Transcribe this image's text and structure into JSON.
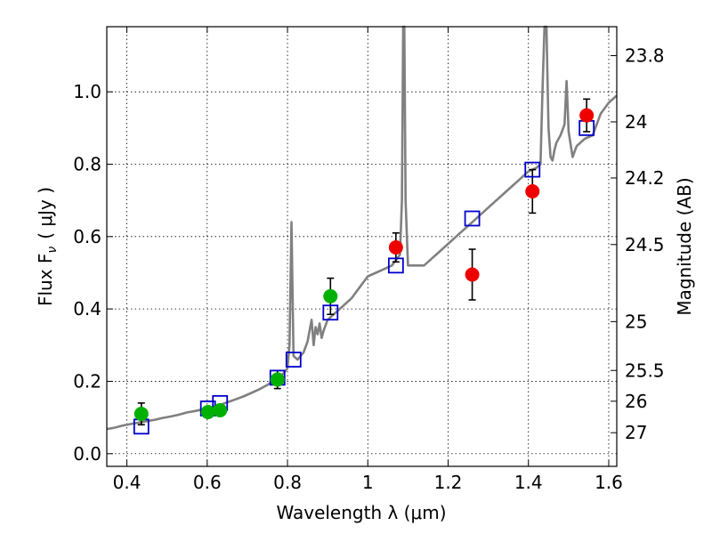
{
  "chart_data": {
    "type": "scatter",
    "xlabel": "Wavelength  λ (μm)",
    "ylabel": "Flux  F",
    "ylabel_sub": "ν",
    "ylabel_unit": "( μJy )",
    "y2label": "Magnitude (AB)",
    "xlim": [
      0.35,
      1.62
    ],
    "ylim": [
      -0.035,
      1.18
    ],
    "x_ticks": [
      0.4,
      0.6,
      0.8,
      1.0,
      1.2,
      1.4,
      1.6
    ],
    "x_tick_labels": [
      "0.4",
      "0.6",
      "0.8",
      "1",
      "1.2",
      "1.4",
      "1.6"
    ],
    "y_ticks": [
      0.0,
      0.2,
      0.4,
      0.6,
      0.8,
      1.0
    ],
    "y_tick_labels": [
      "0.0",
      "0.2",
      "0.4",
      "0.6",
      "0.8",
      "1.0"
    ],
    "y2_ticks": [
      {
        "label": "23.8",
        "flux": 1.1
      },
      {
        "label": "24",
        "flux": 0.917
      },
      {
        "label": "24.2",
        "flux": 0.762
      },
      {
        "label": "24.5",
        "flux": 0.578
      },
      {
        "label": "25",
        "flux": 0.365
      },
      {
        "label": "25.5",
        "flux": 0.23
      },
      {
        "label": "26",
        "flux": 0.145
      },
      {
        "label": "27",
        "flux": 0.058
      }
    ],
    "grid": true,
    "colors": {
      "model": "#808080",
      "model_points": "#0000cc",
      "green_points": "#00b000",
      "red_points": "#ee0000",
      "errorbar": "#000000"
    },
    "series": [
      {
        "kind": "line",
        "points": [
          [
            0.35,
            0.068
          ],
          [
            0.37,
            0.072
          ],
          [
            0.39,
            0.078
          ],
          [
            0.41,
            0.082
          ],
          [
            0.43,
            0.086
          ],
          [
            0.45,
            0.09
          ],
          [
            0.47,
            0.094
          ],
          [
            0.49,
            0.099
          ],
          [
            0.51,
            0.103
          ],
          [
            0.53,
            0.108
          ],
          [
            0.55,
            0.114
          ],
          [
            0.57,
            0.118
          ],
          [
            0.59,
            0.123
          ],
          [
            0.61,
            0.128
          ],
          [
            0.63,
            0.134
          ],
          [
            0.65,
            0.142
          ],
          [
            0.67,
            0.15
          ],
          [
            0.69,
            0.158
          ],
          [
            0.71,
            0.168
          ],
          [
            0.73,
            0.178
          ],
          [
            0.75,
            0.19
          ],
          [
            0.77,
            0.205
          ],
          [
            0.79,
            0.222
          ],
          [
            0.8,
            0.236
          ],
          [
            0.805,
            0.3
          ],
          [
            0.81,
            0.64
          ],
          [
            0.815,
            0.27
          ],
          [
            0.825,
            0.26
          ],
          [
            0.84,
            0.28
          ],
          [
            0.85,
            0.31
          ],
          [
            0.86,
            0.37
          ],
          [
            0.865,
            0.3
          ],
          [
            0.87,
            0.35
          ],
          [
            0.875,
            0.33
          ],
          [
            0.88,
            0.36
          ],
          [
            0.885,
            0.32
          ],
          [
            0.89,
            0.34
          ],
          [
            0.9,
            0.37
          ],
          [
            0.92,
            0.39
          ],
          [
            0.94,
            0.41
          ],
          [
            0.96,
            0.43
          ],
          [
            0.98,
            0.46
          ],
          [
            1.0,
            0.49
          ],
          [
            1.02,
            0.5
          ],
          [
            1.04,
            0.51
          ],
          [
            1.06,
            0.52
          ],
          [
            1.08,
            0.55
          ],
          [
            1.085,
            0.7
          ],
          [
            1.088,
            1.18
          ],
          [
            1.091,
            1.18
          ],
          [
            1.094,
            0.7
          ],
          [
            1.1,
            0.52
          ],
          [
            1.12,
            0.52
          ],
          [
            1.14,
            0.52
          ],
          [
            1.16,
            0.54
          ],
          [
            1.18,
            0.56
          ],
          [
            1.2,
            0.58
          ],
          [
            1.22,
            0.6
          ],
          [
            1.24,
            0.62
          ],
          [
            1.26,
            0.64
          ],
          [
            1.28,
            0.66
          ],
          [
            1.3,
            0.68
          ],
          [
            1.32,
            0.7
          ],
          [
            1.34,
            0.72
          ],
          [
            1.36,
            0.74
          ],
          [
            1.38,
            0.76
          ],
          [
            1.4,
            0.78
          ],
          [
            1.42,
            0.79
          ],
          [
            1.43,
            0.8
          ],
          [
            1.435,
            1.0
          ],
          [
            1.44,
            1.18
          ],
          [
            1.445,
            1.18
          ],
          [
            1.45,
            0.9
          ],
          [
            1.455,
            0.82
          ],
          [
            1.46,
            0.81
          ],
          [
            1.465,
            0.84
          ],
          [
            1.47,
            0.86
          ],
          [
            1.48,
            0.88
          ],
          [
            1.49,
            0.91
          ],
          [
            1.495,
            1.03
          ],
          [
            1.5,
            0.89
          ],
          [
            1.51,
            0.82
          ],
          [
            1.52,
            0.85
          ],
          [
            1.54,
            0.87
          ],
          [
            1.56,
            0.88
          ],
          [
            1.58,
            0.94
          ],
          [
            1.6,
            0.97
          ],
          [
            1.62,
            0.99
          ]
        ]
      },
      {
        "kind": "open-square",
        "points": [
          [
            0.436,
            0.075
          ],
          [
            0.602,
            0.125
          ],
          [
            0.632,
            0.14
          ],
          [
            0.775,
            0.21
          ],
          [
            0.815,
            0.26
          ],
          [
            0.907,
            0.39
          ],
          [
            1.07,
            0.52
          ],
          [
            1.26,
            0.65
          ],
          [
            1.41,
            0.785
          ],
          [
            1.545,
            0.9
          ]
        ]
      },
      {
        "kind": "filled-circle",
        "points": [
          [
            0.436,
            0.11,
            0.03
          ],
          [
            0.602,
            0.115,
            0.012
          ],
          [
            0.632,
            0.12,
            0.012
          ],
          [
            0.775,
            0.205,
            0.025
          ],
          [
            0.907,
            0.435,
            0.05
          ]
        ]
      },
      {
        "kind": "filled-circle",
        "points": [
          [
            1.07,
            0.57,
            0.04
          ],
          [
            1.26,
            0.495,
            0.07
          ],
          [
            1.41,
            0.725,
            0.06
          ],
          [
            1.545,
            0.935,
            0.045
          ]
        ]
      }
    ]
  }
}
